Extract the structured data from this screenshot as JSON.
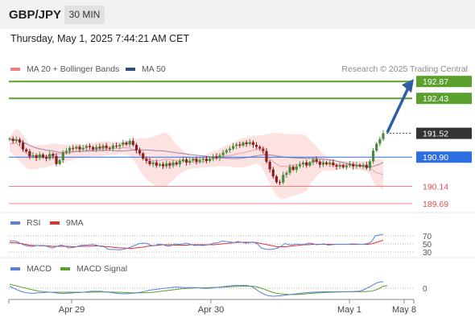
{
  "header": {
    "symbol": "GBP/JPY",
    "timeframe": "30 MIN"
  },
  "timestamp": "Thursday, May 1, 2025 7:44:21 AM CET",
  "copyright": "Research © 2025 Trading Central",
  "legend_main": {
    "bb_label": "MA 20 + Bollinger Bands",
    "ma50_label": "MA 50"
  },
  "legend_rsi": {
    "rsi_label": "RSI",
    "ma_label": "9MA"
  },
  "legend_macd": {
    "macd_label": "MACD",
    "signal_label": "MACD Signal"
  },
  "colors": {
    "bb_band": "#fde2e2",
    "bb_legend": "#f08080",
    "ma50": "#2f4f7f",
    "resistance": "#5aa02c",
    "support": "#f08080",
    "pivot": "#2f6ee0",
    "arrow": "#2f5f9f",
    "last_price": "#333333",
    "rsi": "#5b7fd9",
    "rsi_ma": "#e03030",
    "macd": "#5b7fd9",
    "macd_signal": "#5aa02c",
    "candle_up": "#4a8a3a",
    "candle_down": "#8a2020"
  },
  "chart_data": [
    {
      "type": "candlestick",
      "name": "price",
      "ylim": [
        189.5,
        193.0
      ],
      "x_labels": [
        "Apr 29",
        "Apr 30",
        "May 1",
        "May 8"
      ],
      "levels": [
        {
          "value": 192.87,
          "label": "192.87",
          "kind": "resistance"
        },
        {
          "value": 192.43,
          "label": "192.43",
          "kind": "resistance"
        },
        {
          "value": 191.52,
          "label": "191.52",
          "kind": "last"
        },
        {
          "value": 190.9,
          "label": "190.90",
          "kind": "pivot"
        },
        {
          "value": 190.14,
          "label": "190.14",
          "kind": "support"
        },
        {
          "value": 189.69,
          "label": "189.69",
          "kind": "support"
        }
      ],
      "close": [
        191.38,
        191.32,
        191.36,
        191.28,
        191.1,
        191.05,
        190.92,
        190.95,
        190.88,
        190.97,
        190.9,
        190.86,
        190.98,
        190.93,
        190.72,
        190.82,
        191.02,
        191.06,
        191.14,
        191.12,
        191.17,
        191.1,
        191.14,
        191.19,
        191.16,
        191.1,
        191.17,
        191.13,
        191.2,
        191.14,
        191.12,
        191.2,
        191.18,
        191.22,
        191.28,
        191.23,
        191.32,
        191.22,
        191.08,
        191.0,
        190.86,
        190.8,
        190.72,
        190.76,
        190.68,
        190.72,
        190.66,
        190.74,
        190.68,
        190.76,
        190.71,
        190.8,
        190.84,
        190.76,
        190.81,
        190.86,
        190.78,
        190.83,
        190.86,
        190.8,
        190.86,
        190.92,
        190.88,
        190.95,
        191.02,
        191.08,
        191.12,
        191.19,
        191.23,
        191.2,
        191.28,
        191.24,
        191.29,
        191.22,
        191.17,
        191.12,
        191.06,
        190.78,
        190.58,
        190.4,
        190.25,
        190.24,
        190.44,
        190.49,
        190.65,
        190.57,
        190.66,
        190.71,
        190.76,
        190.68,
        190.76,
        190.84,
        190.78,
        190.7,
        190.76,
        190.72,
        190.76,
        190.69,
        190.65,
        190.69,
        190.64,
        190.68,
        190.72,
        190.66,
        190.7,
        190.66,
        190.7,
        190.62,
        190.79,
        191.07,
        191.25,
        191.37,
        191.52
      ],
      "bb_upper": [
        191.42,
        191.56,
        191.64,
        191.58,
        191.47,
        191.37,
        191.24,
        191.22,
        191.2,
        191.22,
        191.22,
        191.22,
        191.24,
        191.25,
        191.25,
        191.24,
        191.23,
        191.22,
        191.23,
        191.25,
        191.26,
        191.23,
        191.22,
        191.24,
        191.26,
        191.27,
        191.29,
        191.3,
        191.31,
        191.32,
        191.31,
        191.31,
        191.3,
        191.29,
        191.31,
        191.32,
        191.34,
        191.36,
        191.37,
        191.39,
        191.39,
        191.39,
        191.41,
        191.43,
        191.46,
        191.49,
        191.53,
        191.53,
        191.46,
        191.34,
        191.24,
        191.15,
        191.07,
        191.0,
        190.95,
        190.92,
        190.9,
        190.9,
        190.94,
        190.98,
        191.02,
        191.06,
        191.08,
        191.12,
        191.16,
        191.21,
        191.24,
        191.28,
        191.33,
        191.37,
        191.4,
        191.42,
        191.43,
        191.45,
        191.46,
        191.46,
        191.48,
        191.5,
        191.51,
        191.53,
        191.53,
        191.53,
        191.51,
        191.5,
        191.49,
        191.49,
        191.49,
        191.49,
        191.49,
        191.45,
        191.36,
        191.27,
        191.18,
        191.07,
        190.98,
        190.91,
        190.87,
        190.85,
        190.83,
        190.81,
        190.8,
        190.8,
        190.8,
        190.8,
        190.8,
        190.8,
        190.8,
        190.8,
        190.8,
        190.84,
        190.84,
        190.84,
        190.84
      ],
      "bb_lower": [
        191.04,
        190.97,
        190.89,
        190.8,
        190.7,
        190.62,
        190.58,
        190.58,
        190.59,
        190.62,
        190.62,
        190.64,
        190.67,
        190.69,
        190.72,
        190.73,
        190.76,
        190.77,
        190.81,
        190.84,
        190.86,
        190.88,
        190.88,
        190.9,
        190.91,
        190.92,
        190.92,
        190.92,
        190.93,
        190.94,
        190.95,
        190.96,
        190.96,
        190.98,
        190.98,
        190.96,
        190.93,
        190.84,
        190.71,
        190.56,
        190.42,
        190.32,
        190.25,
        190.19,
        190.14,
        190.13,
        190.14,
        190.16,
        190.22,
        190.3,
        190.39,
        190.46,
        190.52,
        190.56,
        190.59,
        190.61,
        190.61,
        190.62,
        190.63,
        190.64,
        190.64,
        190.65,
        190.66,
        190.66,
        190.66,
        190.66,
        190.65,
        190.64,
        190.63,
        190.63,
        190.63,
        190.65,
        190.68,
        190.71,
        190.74,
        190.71,
        190.55,
        190.38,
        190.21,
        190.04,
        189.92,
        189.81,
        189.81,
        189.82,
        189.88,
        189.89,
        189.92,
        189.94,
        189.97,
        190.02,
        190.17,
        190.3,
        190.4,
        190.49,
        190.55,
        190.55,
        190.55,
        190.56,
        190.57,
        190.58,
        190.59,
        190.6,
        190.6,
        190.58,
        190.57,
        190.56,
        190.55,
        190.53,
        190.45,
        190.25,
        190.15,
        190.1,
        190.05
      ]
    },
    {
      "type": "line",
      "name": "rsi",
      "ylim": [
        20,
        80
      ],
      "ticks": [
        "70",
        "50",
        "30"
      ],
      "tick_values": [
        70,
        50,
        30
      ],
      "series": [
        {
          "name": "RSI",
          "values": [
            57,
            58,
            55,
            50,
            46,
            44,
            44,
            46,
            45,
            46,
            42,
            40,
            44,
            47,
            45,
            40,
            41,
            43,
            46,
            47,
            47,
            49,
            47,
            44,
            43,
            37,
            36,
            36,
            35,
            37,
            39,
            43,
            47,
            51,
            52,
            51,
            46,
            46,
            50,
            48,
            45,
            45,
            50,
            49,
            50,
            52,
            49,
            46,
            47,
            46,
            47,
            49,
            52,
            53,
            57,
            56,
            55,
            53,
            56,
            54,
            52,
            53,
            55,
            50,
            40,
            37,
            36,
            37,
            39,
            44,
            51,
            48,
            48,
            50,
            48,
            49,
            52,
            51,
            48,
            49,
            50,
            47,
            48,
            49,
            49,
            49,
            49,
            50,
            50,
            49,
            49,
            51,
            55,
            70,
            72,
            74
          ]
        },
        {
          "name": "9MA",
          "values": [
            53,
            53,
            52,
            51,
            49,
            47,
            46,
            46,
            46,
            45,
            45,
            44,
            44,
            44,
            44,
            44,
            43,
            43,
            44,
            44,
            44,
            45,
            45,
            45,
            44,
            43,
            42,
            41,
            40,
            40,
            39,
            39,
            40,
            41,
            42,
            44,
            45,
            46,
            47,
            48,
            48,
            48,
            47,
            47,
            47,
            47,
            48,
            48,
            48,
            48,
            48,
            48,
            48,
            49,
            50,
            51,
            52,
            53,
            54,
            54,
            54,
            54,
            54,
            53,
            51,
            49,
            47,
            45,
            43,
            43,
            43,
            44,
            45,
            46,
            47,
            48,
            48,
            49,
            49,
            49,
            49,
            49,
            49,
            49,
            49,
            49,
            49,
            49,
            49,
            49,
            49,
            49,
            50,
            53,
            56,
            59
          ]
        }
      ]
    },
    {
      "type": "line",
      "name": "macd",
      "ylim": [
        -0.12,
        0.12
      ],
      "ticks": [
        "0"
      ],
      "tick_values": [
        0
      ],
      "series": [
        {
          "name": "MACD",
          "values": [
            0.02,
            0.0,
            -0.02,
            -0.035,
            -0.045,
            -0.05,
            -0.05,
            -0.045,
            -0.045,
            -0.04,
            -0.04,
            -0.045,
            -0.05,
            -0.052,
            -0.05,
            -0.048,
            -0.045,
            -0.043,
            -0.04,
            -0.035,
            -0.03,
            -0.03,
            -0.03,
            -0.035,
            -0.04,
            -0.045,
            -0.05,
            -0.055,
            -0.055,
            -0.055,
            -0.05,
            -0.045,
            -0.04,
            -0.03,
            -0.02,
            -0.015,
            -0.01,
            -0.005,
            0.0,
            0.005,
            0.01,
            0.01,
            0.008,
            0.006,
            0.006,
            0.006,
            0.005,
            0.0,
            -0.002,
            0.0,
            0.005,
            0.01,
            0.015,
            0.02,
            0.025,
            0.027,
            0.027,
            0.027,
            0.026,
            0.015,
            -0.01,
            -0.04,
            -0.06,
            -0.075,
            -0.08,
            -0.078,
            -0.075,
            -0.07,
            -0.065,
            -0.06,
            -0.055,
            -0.05,
            -0.045,
            -0.042,
            -0.04,
            -0.038,
            -0.037,
            -0.036,
            -0.035,
            -0.035,
            -0.035,
            -0.035,
            -0.035,
            -0.035,
            -0.033,
            -0.03,
            -0.02,
            0.0,
            0.02,
            0.045,
            0.06,
            0.065
          ]
        },
        {
          "name": "MACD Signal",
          "values": [
            0.04,
            0.03,
            0.02,
            0.01,
            0.0,
            -0.01,
            -0.02,
            -0.028,
            -0.033,
            -0.037,
            -0.04,
            -0.04,
            -0.04,
            -0.04,
            -0.04,
            -0.04,
            -0.04,
            -0.04,
            -0.04,
            -0.04,
            -0.04,
            -0.039,
            -0.038,
            -0.038,
            -0.038,
            -0.039,
            -0.04,
            -0.041,
            -0.043,
            -0.045,
            -0.046,
            -0.046,
            -0.046,
            -0.045,
            -0.044,
            -0.04,
            -0.035,
            -0.03,
            -0.025,
            -0.02,
            -0.015,
            -0.01,
            -0.005,
            -0.002,
            0.0,
            0.002,
            0.003,
            0.004,
            0.005,
            0.006,
            0.007,
            0.008,
            0.01,
            0.012,
            0.015,
            0.017,
            0.019,
            0.02,
            0.021,
            0.02,
            0.015,
            0.005,
            -0.01,
            -0.025,
            -0.04,
            -0.05,
            -0.056,
            -0.06,
            -0.062,
            -0.063,
            -0.063,
            -0.06,
            -0.057,
            -0.053,
            -0.05,
            -0.047,
            -0.045,
            -0.043,
            -0.041,
            -0.039,
            -0.038,
            -0.037,
            -0.036,
            -0.035,
            -0.035,
            -0.035,
            -0.034,
            -0.033,
            -0.03,
            -0.02,
            -0.005,
            0.02,
            0.025
          ]
        }
      ]
    }
  ]
}
